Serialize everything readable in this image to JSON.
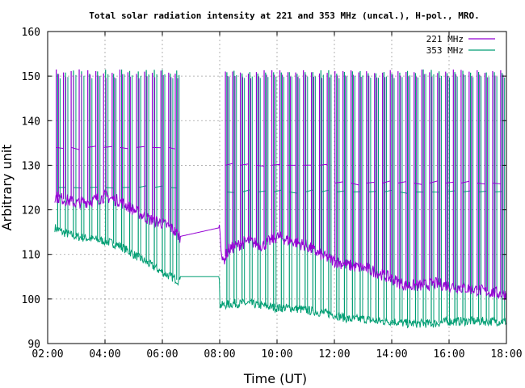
{
  "chart_data": {
    "type": "line",
    "title": "Total solar radiation intensity at 221 and 353 MHz (uncal.), H-pol., MRO.",
    "xlabel": "Time (UT)",
    "ylabel": "Arbitrary unit",
    "xlim": [
      2.0,
      18.0
    ],
    "ylim": [
      90,
      160
    ],
    "xticks": [
      {
        "value": 2,
        "label": "02:00"
      },
      {
        "value": 4,
        "label": "04:00"
      },
      {
        "value": 6,
        "label": "06:00"
      },
      {
        "value": 8,
        "label": "08:00"
      },
      {
        "value": 10,
        "label": "10:00"
      },
      {
        "value": 12,
        "label": "12:00"
      },
      {
        "value": 14,
        "label": "14:00"
      },
      {
        "value": 16,
        "label": "16:00"
      },
      {
        "value": 18,
        "label": "18:00"
      }
    ],
    "yticks": [
      {
        "value": 90,
        "label": "90"
      },
      {
        "value": 100,
        "label": "100"
      },
      {
        "value": 110,
        "label": "110"
      },
      {
        "value": 120,
        "label": "120"
      },
      {
        "value": 130,
        "label": "130"
      },
      {
        "value": 140,
        "label": "140"
      },
      {
        "value": 150,
        "label": "150"
      },
      {
        "value": 160,
        "label": "160"
      }
    ],
    "grid": true,
    "legend_position": "top-right",
    "series": [
      {
        "name": "221 MHz",
        "color": "#9400d3",
        "x": [
          2.25,
          2.5,
          3.0,
          3.5,
          4.0,
          4.5,
          5.0,
          5.5,
          6.0,
          6.3,
          6.6,
          8.0,
          8.1,
          8.3,
          8.6,
          9.0,
          9.5,
          10.0,
          10.5,
          11.0,
          11.5,
          12.0,
          12.5,
          13.0,
          13.5,
          14.0,
          14.5,
          15.0,
          15.5,
          16.0,
          16.5,
          17.0,
          17.5,
          18.0
        ],
        "y": [
          123,
          122.5,
          121.5,
          122,
          123,
          122,
          120,
          118,
          117,
          116,
          114,
          116,
          108,
          111,
          112,
          113,
          112,
          114,
          113,
          112,
          110,
          108.5,
          107.5,
          107,
          106,
          104.5,
          103,
          103,
          103.5,
          103,
          102.5,
          102,
          101.5,
          101
        ],
        "spike_times": [
          2.3,
          2.55,
          2.82,
          3.1,
          3.4,
          3.68,
          3.95,
          4.25,
          4.52,
          4.8,
          5.1,
          5.38,
          5.65,
          5.95,
          6.22,
          6.45,
          8.2,
          8.45,
          8.72,
          9.0,
          9.28,
          9.55,
          9.82,
          10.1,
          10.38,
          10.65,
          10.92,
          11.2,
          11.48,
          11.75,
          12.02,
          12.3,
          12.58,
          12.85,
          13.12,
          13.4,
          13.68,
          13.95,
          14.22,
          14.5,
          14.78,
          15.05,
          15.32,
          15.6,
          15.88,
          16.15,
          16.42,
          16.7,
          16.98,
          17.25,
          17.52,
          17.8
        ],
        "spike_peak": 151,
        "plateau": [
          {
            "x_start": 2.25,
            "x_end": 6.6,
            "y": 134
          },
          {
            "x_start": 8.0,
            "x_end": 12.0,
            "y": 130
          },
          {
            "x_start": 12.0,
            "x_end": 18.0,
            "y": 126
          }
        ]
      },
      {
        "name": "353 MHz",
        "color": "#009e73",
        "x": [
          2.25,
          2.5,
          3.0,
          3.5,
          4.0,
          4.5,
          5.0,
          5.5,
          6.0,
          6.3,
          6.6,
          6.61,
          8.0,
          8.01,
          8.5,
          9.0,
          9.5,
          10.0,
          10.5,
          11.0,
          11.5,
          12.0,
          12.5,
          13.0,
          13.5,
          14.0,
          14.5,
          15.0,
          15.5,
          16.0,
          16.5,
          17.0,
          17.5,
          18.0
        ],
        "y": [
          116,
          115,
          114,
          113.5,
          113,
          112,
          110,
          108,
          106,
          105,
          104,
          105,
          105,
          98.5,
          99,
          99,
          98.5,
          98,
          98,
          97.5,
          97,
          96.5,
          95.5,
          95.5,
          95,
          95,
          94.5,
          94.5,
          94.5,
          95,
          95,
          95,
          95,
          95
        ],
        "spike_times": [
          2.35,
          2.62,
          2.9,
          3.18,
          3.46,
          3.74,
          4.02,
          4.3,
          4.58,
          4.86,
          5.16,
          5.44,
          5.72,
          6.0,
          6.28,
          6.5,
          8.25,
          8.5,
          8.78,
          9.05,
          9.33,
          9.6,
          9.88,
          10.15,
          10.43,
          10.7,
          10.98,
          11.25,
          11.53,
          11.8,
          12.08,
          12.35,
          12.63,
          12.9,
          13.18,
          13.45,
          13.73,
          14.0,
          14.28,
          14.55,
          14.83,
          15.1,
          15.38,
          15.65,
          15.93,
          16.2,
          16.48,
          16.75,
          17.03,
          17.3,
          17.58,
          17.85
        ],
        "spike_peak": 151,
        "plateau": [
          {
            "x_start": 2.25,
            "x_end": 6.6,
            "y": 125
          },
          {
            "x_start": 8.0,
            "x_end": 18.0,
            "y": 124
          }
        ]
      }
    ]
  }
}
